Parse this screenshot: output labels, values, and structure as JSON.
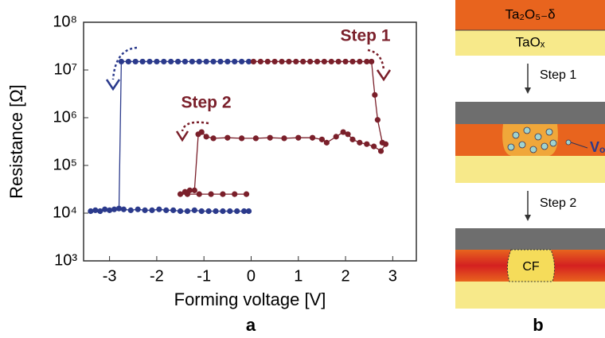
{
  "chart_data": {
    "type": "line",
    "x_label": "Forming voltage [V]",
    "y_label": "Resistance [Ω]",
    "y_scale": "log",
    "grid": true,
    "xlim": [
      -3.55,
      3.5
    ],
    "xticks": [
      -3,
      -2,
      -1,
      0,
      1,
      2,
      3
    ],
    "ylim": [
      1000,
      100000000
    ],
    "yticks": [
      {
        "value": 1000,
        "label": "10³"
      },
      {
        "value": 10000,
        "label": "10⁴"
      },
      {
        "value": 100000,
        "label": "10⁵"
      },
      {
        "value": 1000000,
        "label": "10⁶"
      },
      {
        "value": 10000000,
        "label": "10⁷"
      },
      {
        "value": 100000000,
        "label": "10⁸"
      }
    ],
    "annotations": [
      "Step 1",
      "Step 2"
    ],
    "series": [
      {
        "color": "#2b3a8c",
        "x": [
          -3.4,
          -3.3,
          -3.2,
          -3.1,
          -3.0,
          -2.9,
          -2.8,
          -2.75,
          -2.6,
          -2.45,
          -2.3,
          -2.15,
          -2.0,
          -1.85,
          -1.7,
          -1.55,
          -1.4,
          -1.25,
          -1.1,
          -0.95,
          -0.8,
          -0.65,
          -0.5,
          -0.35,
          -0.2,
          -0.05,
          null,
          -2.7,
          -2.55,
          -2.4,
          -2.25,
          -2.1,
          -1.95,
          -1.8,
          -1.65,
          -1.5,
          -1.35,
          -1.2,
          -1.05,
          -0.9,
          -0.75,
          -0.6,
          -0.45,
          -0.3,
          -0.15,
          -0.05
        ],
        "values": [
          11000,
          11500,
          11000,
          12000,
          11500,
          12000,
          12500,
          15000000,
          15000000,
          15000000,
          15000000,
          15000000,
          15000000,
          15000000,
          15000000,
          15000000,
          15000000,
          15000000,
          15000000,
          15000000,
          15000000,
          15000000,
          15000000,
          15000000,
          15000000,
          15000000,
          null,
          12000,
          11500,
          12000,
          11500,
          11500,
          12000,
          11500,
          11500,
          11000,
          11000,
          11500,
          11000,
          11000,
          11000,
          11000,
          11000,
          11000,
          11000,
          11000
        ]
      },
      {
        "color": "#7a1f2a",
        "x": [
          0.05,
          0.2,
          0.35,
          0.5,
          0.65,
          0.8,
          0.95,
          1.1,
          1.25,
          1.4,
          1.55,
          1.7,
          1.85,
          2.0,
          2.15,
          2.3,
          2.45,
          2.55,
          2.62,
          2.68,
          2.78,
          2.85,
          2.75,
          2.6,
          2.45,
          2.3,
          2.15,
          2.05,
          1.95,
          1.8,
          1.6,
          1.5,
          1.3,
          1.0,
          0.7,
          0.4,
          0.1,
          -0.2,
          -0.5,
          -0.8,
          -0.95,
          -1.05,
          -1.12,
          -1.2,
          -1.3,
          -1.4,
          -1.5,
          -1.35,
          -1.1,
          -0.85,
          -0.6,
          -0.35,
          -0.1
        ],
        "values": [
          15000000,
          15000000,
          15000000,
          15000000,
          15000000,
          15000000,
          15000000,
          15000000,
          15000000,
          15000000,
          15000000,
          15000000,
          15000000,
          15000000,
          15000000,
          15000000,
          15000000,
          15000000,
          3000000,
          900000,
          300000,
          280000,
          200000,
          250000,
          280000,
          300000,
          350000,
          450000,
          500000,
          400000,
          300000,
          350000,
          380000,
          380000,
          370000,
          380000,
          370000,
          370000,
          380000,
          370000,
          400000,
          500000,
          450000,
          30000,
          30000,
          28000,
          25000,
          25000,
          25000,
          25000,
          25000,
          25000,
          25000
        ]
      }
    ]
  },
  "panel_labels": [
    "a",
    "b"
  ],
  "diagram": {
    "layer_top": "Ta₂O₅₋δ",
    "layer_bottom": "TaOₓ",
    "step1": "Step 1",
    "step2": "Step 2",
    "vacancy": "Vₒ",
    "filament": "CF"
  }
}
